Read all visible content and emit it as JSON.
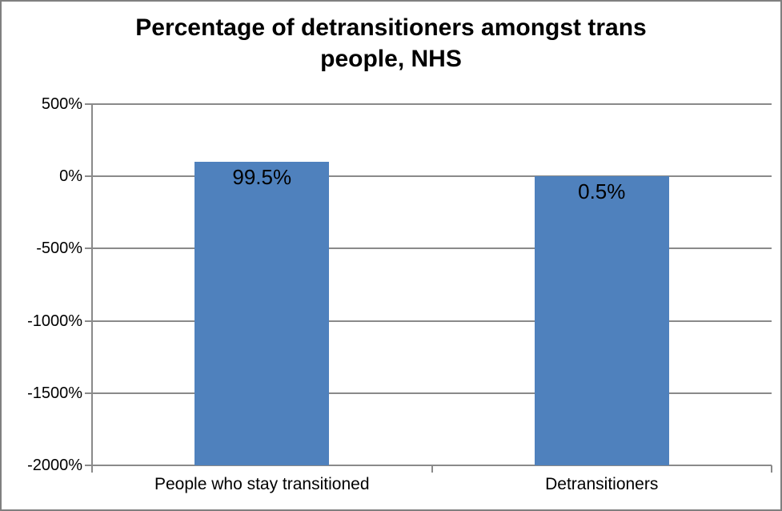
{
  "chart_data": {
    "type": "bar",
    "title": "Percentage of detransitioners amongst trans people, NHS",
    "title_lines": [
      "Percentage of detransitioners amongst trans",
      "people, NHS"
    ],
    "categories": [
      "People who stay transitioned",
      "Detransitioners"
    ],
    "values": [
      99.5,
      0.5
    ],
    "value_labels": [
      "99.5%",
      "0.5%"
    ],
    "xlabel": "",
    "ylabel": "",
    "ylim": [
      -2000,
      500
    ],
    "y_tick_step": 500,
    "y_tick_labels": [
      "500%",
      "0%",
      "-500%",
      "-1000%",
      "-1500%",
      "-2000%"
    ],
    "grid": true,
    "legend": false,
    "bars_start_at_plot_bottom": true,
    "colors": {
      "bar": "#4f81bd",
      "gridline": "#8a8a8a",
      "axis": "#8a8a8a",
      "text": "#000000",
      "background": "#ffffff",
      "outer_border": "#808080"
    }
  }
}
